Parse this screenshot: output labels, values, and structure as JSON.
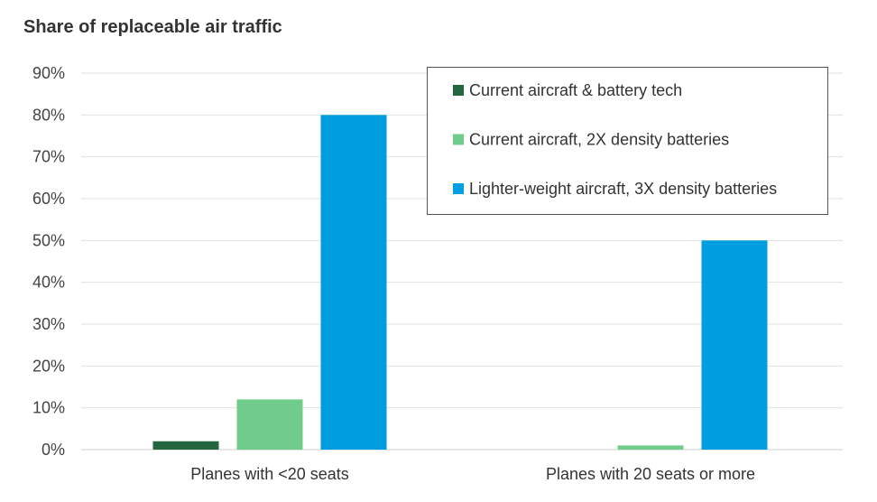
{
  "chart_data": {
    "type": "bar",
    "title": "Share of replaceable air traffic",
    "xlabel": "",
    "ylabel": "",
    "categories": [
      "Planes with <20 seats",
      "Planes with 20 seats or more"
    ],
    "series": [
      {
        "name": "Current aircraft & battery tech",
        "values": [
          2,
          0
        ],
        "color": "#236640"
      },
      {
        "name": "Current aircraft, 2X density batteries",
        "values": [
          12,
          1
        ],
        "color": "#6fcc8b"
      },
      {
        "name": "Lighter-weight aircraft, 3X density batteries",
        "values": [
          80,
          50
        ],
        "color": "#009ee0"
      }
    ],
    "ylim": [
      0,
      90
    ],
    "y_ticks": [
      0,
      10,
      20,
      30,
      40,
      50,
      60,
      70,
      80,
      90
    ],
    "y_tick_labels": [
      "0%",
      "10%",
      "20%",
      "30%",
      "40%",
      "50%",
      "60%",
      "70%",
      "80%",
      "90%"
    ],
    "grid": true,
    "legend_position": "top-right"
  }
}
